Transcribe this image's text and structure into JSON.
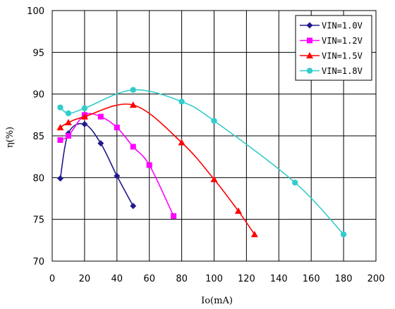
{
  "chart_data": {
    "type": "line",
    "title": "",
    "xlabel": "Io(mA)",
    "ylabel": "η(%)",
    "xlim": [
      0,
      200
    ],
    "ylim": [
      70,
      100
    ],
    "x_ticks": [
      0,
      20,
      40,
      60,
      80,
      100,
      120,
      140,
      160,
      180,
      200
    ],
    "y_ticks": [
      70,
      75,
      80,
      85,
      90,
      95,
      100
    ],
    "grid": true,
    "legend_position": "top-right",
    "series": [
      {
        "name": "VIN=1.0V",
        "color": "#1f1a8c",
        "marker": "diamond",
        "points": [
          [
            5,
            79.9
          ],
          [
            10,
            85.3
          ],
          [
            20,
            86.4
          ],
          [
            30,
            84.1
          ],
          [
            40,
            80.2
          ],
          [
            50,
            76.6
          ]
        ]
      },
      {
        "name": "VIN=1.2V",
        "color": "#ff00ff",
        "marker": "square",
        "points": [
          [
            5,
            84.5
          ],
          [
            10,
            85.0
          ],
          [
            20,
            87.5
          ],
          [
            30,
            87.3
          ],
          [
            40,
            86.0
          ],
          [
            50,
            83.7
          ],
          [
            60,
            81.5
          ],
          [
            75,
            75.4
          ]
        ]
      },
      {
        "name": "VIN=1.5V",
        "color": "#ff0000",
        "marker": "triangle",
        "points": [
          [
            5,
            86.0
          ],
          [
            10,
            86.6
          ],
          [
            20,
            87.3
          ],
          [
            50,
            88.7
          ],
          [
            80,
            84.2
          ],
          [
            100,
            79.8
          ],
          [
            115,
            76.0
          ],
          [
            125,
            73.2
          ]
        ]
      },
      {
        "name": "VIN=1.8V",
        "color": "#33cccc",
        "marker": "circle",
        "points": [
          [
            5,
            88.4
          ],
          [
            10,
            87.7
          ],
          [
            20,
            88.3
          ],
          [
            50,
            90.5
          ],
          [
            80,
            89.1
          ],
          [
            100,
            86.8
          ],
          [
            150,
            79.4
          ],
          [
            180,
            73.2
          ]
        ]
      }
    ]
  }
}
